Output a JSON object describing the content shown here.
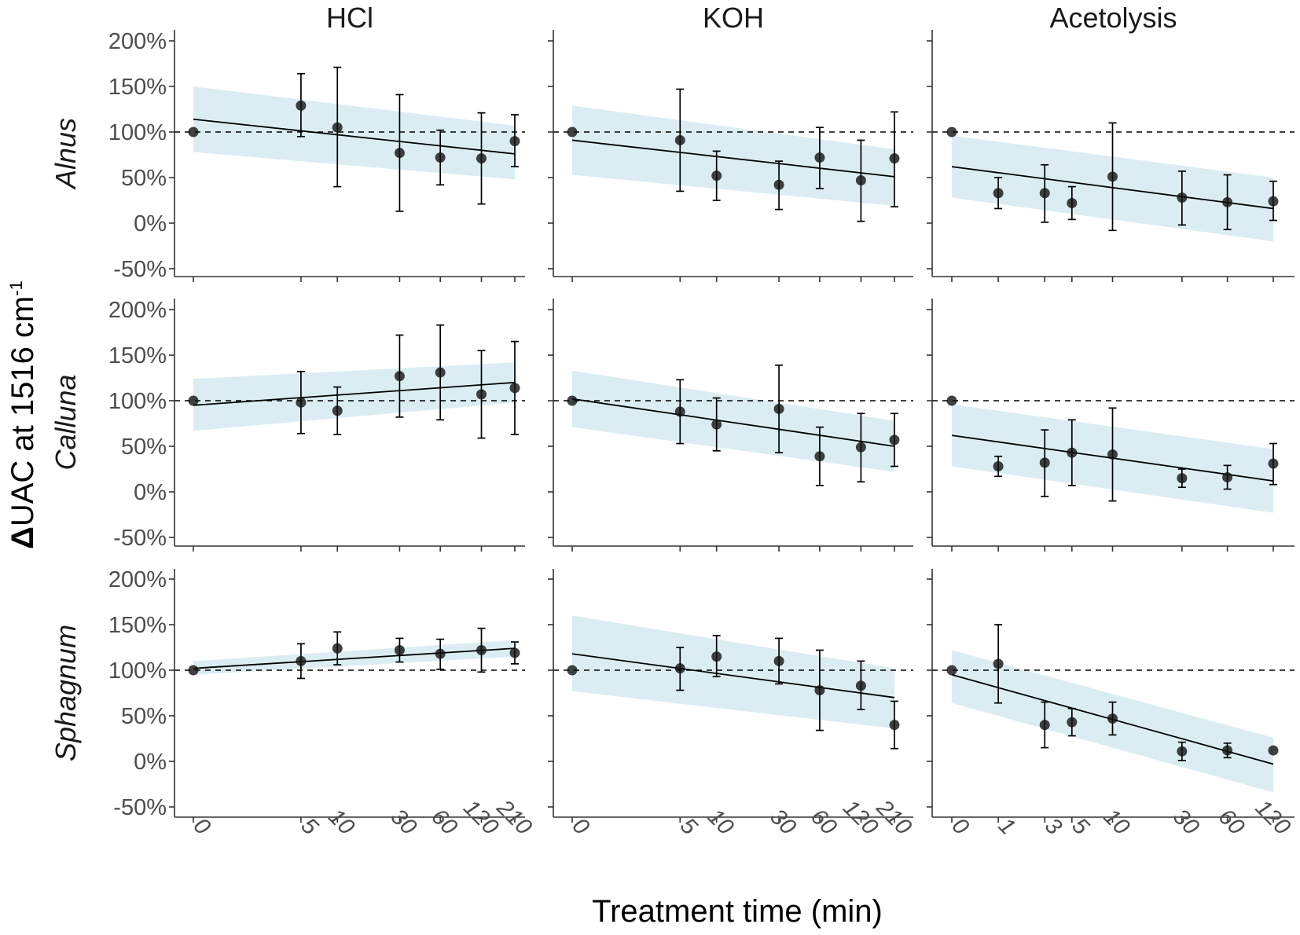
{
  "chart_data": {
    "type": "scatter",
    "facets": "grid",
    "xlabel": "Treatment time (min)",
    "ylabel": {
      "prefix": "Δ",
      "main": "UAC at 1516 cm",
      "superscript": "-1"
    },
    "y_ticks": [
      -50,
      0,
      50,
      100,
      150,
      200
    ],
    "y_tick_labels": [
      "-50%",
      "0%",
      "50%",
      "100%",
      "150%",
      "200%"
    ],
    "ylim": [
      -62,
      212
    ],
    "reference_line": 100,
    "columns": [
      {
        "name": "HCl",
        "x_ticks": [
          0,
          5,
          10,
          30,
          60,
          120,
          210
        ],
        "x_tick_labels": [
          "0",
          "5",
          "10",
          "30",
          "60",
          "120",
          "210"
        ]
      },
      {
        "name": "KOH",
        "x_ticks": [
          0,
          5,
          10,
          30,
          60,
          120,
          210
        ],
        "x_tick_labels": [
          "0",
          "5",
          "10",
          "30",
          "60",
          "120",
          "210"
        ]
      },
      {
        "name": "Acetolysis",
        "x_ticks": [
          0,
          1,
          3,
          5,
          10,
          30,
          60,
          120
        ],
        "x_tick_labels": [
          "0",
          "1",
          "3",
          "5",
          "10",
          "30",
          "60",
          "120"
        ]
      }
    ],
    "rows": [
      "Alnus",
      "Calluna",
      "Sphagnum"
    ],
    "panels": [
      {
        "row": "Alnus",
        "column": "HCl",
        "points": [
          {
            "x": 0,
            "y": 100,
            "lo": null,
            "hi": null
          },
          {
            "x": 5,
            "y": 129,
            "lo": 95,
            "hi": 164
          },
          {
            "x": 10,
            "y": 105,
            "lo": 40,
            "hi": 171
          },
          {
            "x": 30,
            "y": 77,
            "lo": 13,
            "hi": 141
          },
          {
            "x": 60,
            "y": 72,
            "lo": 42,
            "hi": 102
          },
          {
            "x": 120,
            "y": 71,
            "lo": 21,
            "hi": 121
          },
          {
            "x": 210,
            "y": 90,
            "lo": 62,
            "hi": 119
          }
        ],
        "fit": {
          "y0": 114,
          "y1": 76
        },
        "band": {
          "lo0": 78,
          "hi0": 150,
          "lo1": 48,
          "hi1": 107
        }
      },
      {
        "row": "Alnus",
        "column": "KOH",
        "points": [
          {
            "x": 0,
            "y": 100,
            "lo": null,
            "hi": null
          },
          {
            "x": 5,
            "y": 91,
            "lo": 35,
            "hi": 147
          },
          {
            "x": 10,
            "y": 52,
            "lo": 25,
            "hi": 79
          },
          {
            "x": 30,
            "y": 42,
            "lo": 15,
            "hi": 68
          },
          {
            "x": 60,
            "y": 72,
            "lo": 38,
            "hi": 105
          },
          {
            "x": 120,
            "y": 47,
            "lo": 2,
            "hi": 91
          },
          {
            "x": 210,
            "y": 71,
            "lo": 18,
            "hi": 122
          }
        ],
        "fit": {
          "y0": 91,
          "y1": 51
        },
        "band": {
          "lo0": 53,
          "hi0": 129,
          "lo1": 19,
          "hi1": 81
        }
      },
      {
        "row": "Alnus",
        "column": "Acetolysis",
        "points": [
          {
            "x": 0,
            "y": 100,
            "lo": null,
            "hi": null
          },
          {
            "x": 1,
            "y": 33,
            "lo": 16,
            "hi": 50
          },
          {
            "x": 3,
            "y": 33,
            "lo": 1,
            "hi": 64
          },
          {
            "x": 5,
            "y": 22,
            "lo": 4,
            "hi": 40
          },
          {
            "x": 10,
            "y": 51,
            "lo": -8,
            "hi": 110
          },
          {
            "x": 30,
            "y": 28,
            "lo": -2,
            "hi": 57
          },
          {
            "x": 60,
            "y": 23,
            "lo": -7,
            "hi": 53
          },
          {
            "x": 120,
            "y": 24,
            "lo": 3,
            "hi": 46
          }
        ],
        "fit": {
          "y0": 62,
          "y1": 16
        },
        "band": {
          "lo0": 28,
          "hi0": 96,
          "lo1": -20,
          "hi1": 50
        }
      },
      {
        "row": "Calluna",
        "column": "HCl",
        "points": [
          {
            "x": 0,
            "y": 100,
            "lo": null,
            "hi": null
          },
          {
            "x": 5,
            "y": 98,
            "lo": 64,
            "hi": 132
          },
          {
            "x": 10,
            "y": 89,
            "lo": 63,
            "hi": 115
          },
          {
            "x": 30,
            "y": 127,
            "lo": 82,
            "hi": 172
          },
          {
            "x": 60,
            "y": 131,
            "lo": 79,
            "hi": 183
          },
          {
            "x": 120,
            "y": 107,
            "lo": 59,
            "hi": 155
          },
          {
            "x": 210,
            "y": 114,
            "lo": 63,
            "hi": 165
          }
        ],
        "fit": {
          "y0": 95,
          "y1": 120
        },
        "band": {
          "lo0": 67,
          "hi0": 124,
          "lo1": 98,
          "hi1": 142
        }
      },
      {
        "row": "Calluna",
        "column": "KOH",
        "points": [
          {
            "x": 0,
            "y": 100,
            "lo": null,
            "hi": null
          },
          {
            "x": 5,
            "y": 88,
            "lo": 53,
            "hi": 123
          },
          {
            "x": 10,
            "y": 74,
            "lo": 45,
            "hi": 103
          },
          {
            "x": 30,
            "y": 91,
            "lo": 43,
            "hi": 139
          },
          {
            "x": 60,
            "y": 39,
            "lo": 7,
            "hi": 71
          },
          {
            "x": 120,
            "y": 49,
            "lo": 11,
            "hi": 86
          },
          {
            "x": 210,
            "y": 57,
            "lo": 28,
            "hi": 86
          }
        ],
        "fit": {
          "y0": 102,
          "y1": 50
        },
        "band": {
          "lo0": 71,
          "hi0": 133,
          "lo1": 22,
          "hi1": 78
        }
      },
      {
        "row": "Calluna",
        "column": "Acetolysis",
        "points": [
          {
            "x": 0,
            "y": 100,
            "lo": null,
            "hi": null
          },
          {
            "x": 1,
            "y": 28,
            "lo": 17,
            "hi": 39
          },
          {
            "x": 3,
            "y": 32,
            "lo": -5,
            "hi": 68
          },
          {
            "x": 5,
            "y": 43,
            "lo": 7,
            "hi": 79
          },
          {
            "x": 10,
            "y": 41,
            "lo": -10,
            "hi": 92
          },
          {
            "x": 30,
            "y": 15,
            "lo": 5,
            "hi": 25
          },
          {
            "x": 60,
            "y": 16,
            "lo": 3,
            "hi": 29
          },
          {
            "x": 120,
            "y": 31,
            "lo": 8,
            "hi": 53
          }
        ],
        "fit": {
          "y0": 62,
          "y1": 12
        },
        "band": {
          "lo0": 28,
          "hi0": 96,
          "lo1": -23,
          "hi1": 47
        }
      },
      {
        "row": "Sphagnum",
        "column": "HCl",
        "points": [
          {
            "x": 0,
            "y": 100,
            "lo": null,
            "hi": null
          },
          {
            "x": 5,
            "y": 110,
            "lo": 91,
            "hi": 129
          },
          {
            "x": 10,
            "y": 124,
            "lo": 106,
            "hi": 142
          },
          {
            "x": 30,
            "y": 122,
            "lo": 109,
            "hi": 135
          },
          {
            "x": 60,
            "y": 118,
            "lo": 101,
            "hi": 134
          },
          {
            "x": 120,
            "y": 122,
            "lo": 98,
            "hi": 146
          },
          {
            "x": 210,
            "y": 119,
            "lo": 107,
            "hi": 131
          }
        ],
        "fit": {
          "y0": 102,
          "y1": 124
        },
        "band": {
          "lo0": 95,
          "hi0": 110,
          "lo1": 115,
          "hi1": 133
        }
      },
      {
        "row": "Sphagnum",
        "column": "KOH",
        "points": [
          {
            "x": 0,
            "y": 100,
            "lo": null,
            "hi": null
          },
          {
            "x": 5,
            "y": 102,
            "lo": 78,
            "hi": 125
          },
          {
            "x": 10,
            "y": 115,
            "lo": 93,
            "hi": 138
          },
          {
            "x": 30,
            "y": 110,
            "lo": 85,
            "hi": 135
          },
          {
            "x": 60,
            "y": 78,
            "lo": 34,
            "hi": 122
          },
          {
            "x": 120,
            "y": 83,
            "lo": 57,
            "hi": 110
          },
          {
            "x": 210,
            "y": 40,
            "lo": 14,
            "hi": 66
          }
        ],
        "fit": {
          "y0": 118,
          "y1": 70
        },
        "band": {
          "lo0": 77,
          "hi0": 160,
          "lo1": 36,
          "hi1": 102
        }
      },
      {
        "row": "Sphagnum",
        "column": "Acetolysis",
        "points": [
          {
            "x": 0,
            "y": 100,
            "lo": null,
            "hi": null
          },
          {
            "x": 1,
            "y": 107,
            "lo": 64,
            "hi": 150
          },
          {
            "x": 3,
            "y": 40,
            "lo": 15,
            "hi": 65
          },
          {
            "x": 5,
            "y": 43,
            "lo": 28,
            "hi": 58
          },
          {
            "x": 10,
            "y": 47,
            "lo": 29,
            "hi": 65
          },
          {
            "x": 30,
            "y": 11,
            "lo": 1,
            "hi": 21
          },
          {
            "x": 60,
            "y": 12,
            "lo": 4,
            "hi": 20
          },
          {
            "x": 120,
            "y": 12,
            "lo": null,
            "hi": null
          }
        ],
        "fit": {
          "y0": 95,
          "y1": -3
        },
        "band": {
          "lo0": 64,
          "hi0": 122,
          "lo1": -34,
          "hi1": 26
        }
      }
    ]
  },
  "colors": {
    "band": "#dbedf3",
    "point": "#111111",
    "line": "#000000",
    "axis": "#333333",
    "tick_text": "#4d4d4d"
  }
}
